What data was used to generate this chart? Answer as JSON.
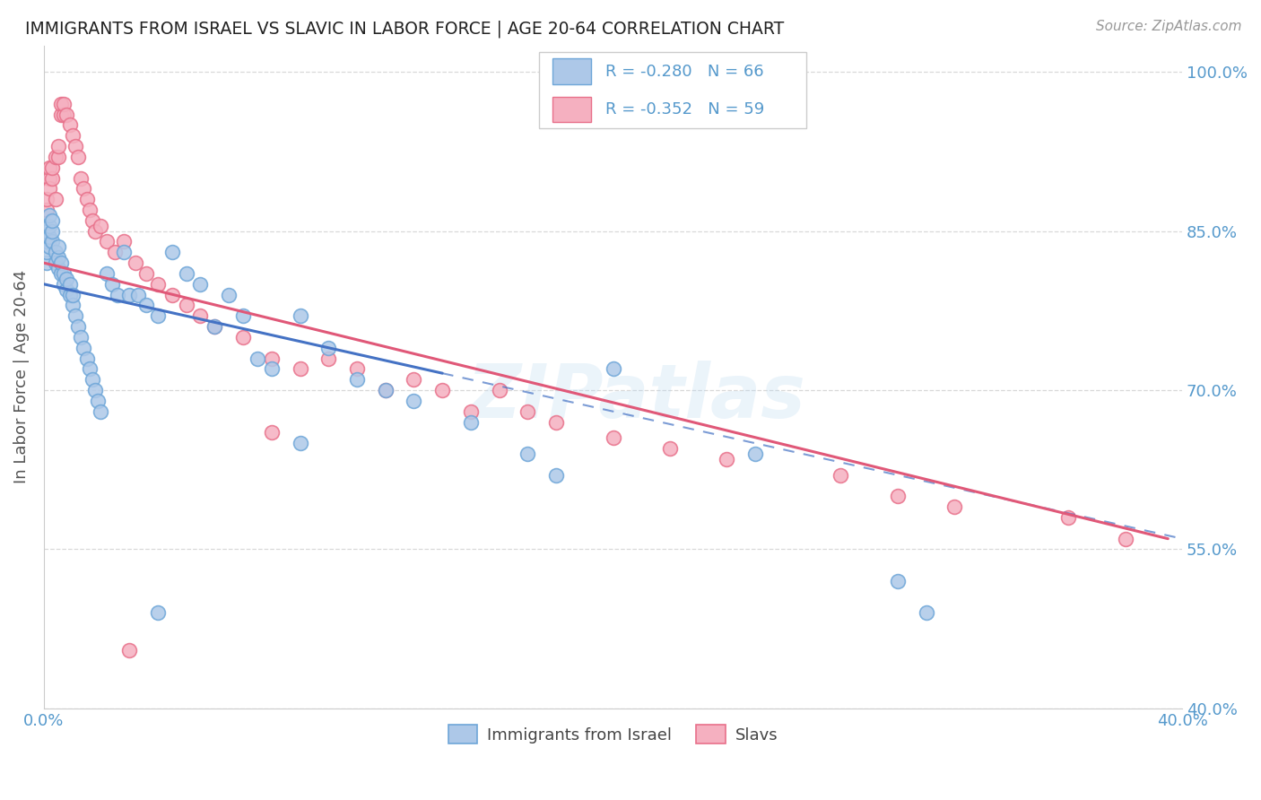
{
  "title": "IMMIGRANTS FROM ISRAEL VS SLAVIC IN LABOR FORCE | AGE 20-64 CORRELATION CHART",
  "source": "Source: ZipAtlas.com",
  "ylabel": "In Labor Force | Age 20-64",
  "xlim": [
    0.0,
    0.4
  ],
  "ylim": [
    0.4,
    1.025
  ],
  "xticks": [
    0.0,
    0.05,
    0.1,
    0.15,
    0.2,
    0.25,
    0.3,
    0.35,
    0.4
  ],
  "xticklabels": [
    "0.0%",
    "",
    "",
    "",
    "",
    "",
    "",
    "",
    "40.0%"
  ],
  "yticks": [
    0.4,
    0.55,
    0.7,
    0.85,
    1.0
  ],
  "yticklabels": [
    "40.0%",
    "55.0%",
    "70.0%",
    "85.0%",
    "100.0%"
  ],
  "legend_r_israel": "R = -0.280",
  "legend_n_israel": "N = 66",
  "legend_r_slavs": "R = -0.352",
  "legend_n_slavs": "N = 59",
  "color_israel_fill": "#adc8e8",
  "color_israel_edge": "#6ea6d8",
  "color_slavs_fill": "#f5b0c0",
  "color_slavs_edge": "#e8708a",
  "color_israel_line": "#4472c4",
  "color_slavs_line": "#e05878",
  "watermark": "ZIPatlas",
  "background_color": "#ffffff",
  "grid_color": "#d8d8d8",
  "tick_color": "#5599cc",
  "legend_text_color": "#5599cc",
  "ylabel_color": "#555555",
  "title_color": "#222222",
  "source_color": "#999999",
  "israel_x": [
    0.001,
    0.001,
    0.001,
    0.001,
    0.002,
    0.002,
    0.002,
    0.002,
    0.003,
    0.003,
    0.003,
    0.004,
    0.004,
    0.005,
    0.005,
    0.005,
    0.006,
    0.006,
    0.007,
    0.007,
    0.008,
    0.008,
    0.009,
    0.009,
    0.01,
    0.01,
    0.011,
    0.012,
    0.013,
    0.014,
    0.015,
    0.016,
    0.017,
    0.018,
    0.019,
    0.02,
    0.022,
    0.024,
    0.026,
    0.028,
    0.03,
    0.033,
    0.036,
    0.04,
    0.045,
    0.05,
    0.055,
    0.06,
    0.065,
    0.07,
    0.075,
    0.08,
    0.09,
    0.1,
    0.11,
    0.12,
    0.13,
    0.15,
    0.17,
    0.2,
    0.25,
    0.3,
    0.31,
    0.18,
    0.09,
    0.04
  ],
  "israel_y": [
    0.82,
    0.83,
    0.84,
    0.85,
    0.835,
    0.845,
    0.855,
    0.865,
    0.84,
    0.85,
    0.86,
    0.83,
    0.82,
    0.815,
    0.825,
    0.835,
    0.81,
    0.82,
    0.8,
    0.81,
    0.795,
    0.805,
    0.79,
    0.8,
    0.78,
    0.79,
    0.77,
    0.76,
    0.75,
    0.74,
    0.73,
    0.72,
    0.71,
    0.7,
    0.69,
    0.68,
    0.81,
    0.8,
    0.79,
    0.83,
    0.79,
    0.79,
    0.78,
    0.77,
    0.83,
    0.81,
    0.8,
    0.76,
    0.79,
    0.77,
    0.73,
    0.72,
    0.77,
    0.74,
    0.71,
    0.7,
    0.69,
    0.67,
    0.64,
    0.72,
    0.64,
    0.52,
    0.49,
    0.62,
    0.65,
    0.49
  ],
  "slavs_x": [
    0.001,
    0.001,
    0.002,
    0.002,
    0.002,
    0.003,
    0.003,
    0.004,
    0.004,
    0.005,
    0.005,
    0.006,
    0.006,
    0.007,
    0.007,
    0.008,
    0.009,
    0.01,
    0.011,
    0.012,
    0.013,
    0.014,
    0.015,
    0.016,
    0.017,
    0.018,
    0.02,
    0.022,
    0.025,
    0.028,
    0.032,
    0.036,
    0.04,
    0.045,
    0.05,
    0.055,
    0.06,
    0.07,
    0.08,
    0.09,
    0.1,
    0.11,
    0.12,
    0.13,
    0.14,
    0.15,
    0.16,
    0.17,
    0.18,
    0.2,
    0.22,
    0.24,
    0.28,
    0.3,
    0.32,
    0.36,
    0.38,
    0.08,
    0.03
  ],
  "slavs_y": [
    0.87,
    0.88,
    0.9,
    0.91,
    0.89,
    0.9,
    0.91,
    0.88,
    0.92,
    0.92,
    0.93,
    0.96,
    0.97,
    0.96,
    0.97,
    0.96,
    0.95,
    0.94,
    0.93,
    0.92,
    0.9,
    0.89,
    0.88,
    0.87,
    0.86,
    0.85,
    0.855,
    0.84,
    0.83,
    0.84,
    0.82,
    0.81,
    0.8,
    0.79,
    0.78,
    0.77,
    0.76,
    0.75,
    0.73,
    0.72,
    0.73,
    0.72,
    0.7,
    0.71,
    0.7,
    0.68,
    0.7,
    0.68,
    0.67,
    0.655,
    0.645,
    0.635,
    0.62,
    0.6,
    0.59,
    0.58,
    0.56,
    0.66,
    0.455
  ],
  "isr_line_x0": 0.0,
  "isr_line_x_solid_end": 0.14,
  "isr_line_x1": 0.4,
  "isr_line_y0": 0.8,
  "isr_line_y1": 0.56,
  "slv_line_x0": 0.0,
  "slv_line_x1": 0.395,
  "slv_line_y0": 0.82,
  "slv_line_y1": 0.56
}
